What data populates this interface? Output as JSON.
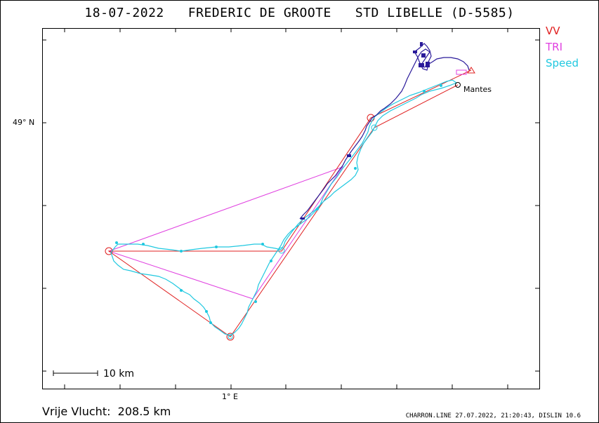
{
  "title": "18-07-2022   FREDERIC DE GROOTE   STD LIBELLE (D-5585)",
  "legend": [
    {
      "label": "VV",
      "color": "#e02020"
    },
    {
      "label": "TRI",
      "color": "#e040e0"
    },
    {
      "label": "Speed",
      "color": "#20c8e0"
    }
  ],
  "axes": {
    "lat_label": "49° N",
    "lon_label": "1° E"
  },
  "scale": {
    "label": "10 km"
  },
  "place_label": "Mantes",
  "footer": {
    "distance": "Vrije Vlucht:  208.5 km",
    "credit": "CHARRON.LINE 27.07.2022, 21:20:43, DISLIN 10.6"
  },
  "colors": {
    "vv_route": "#e02020",
    "tri_route": "#e040e0",
    "speed_track": "#20c8e0",
    "climb_track": "#2a1a9a"
  }
}
